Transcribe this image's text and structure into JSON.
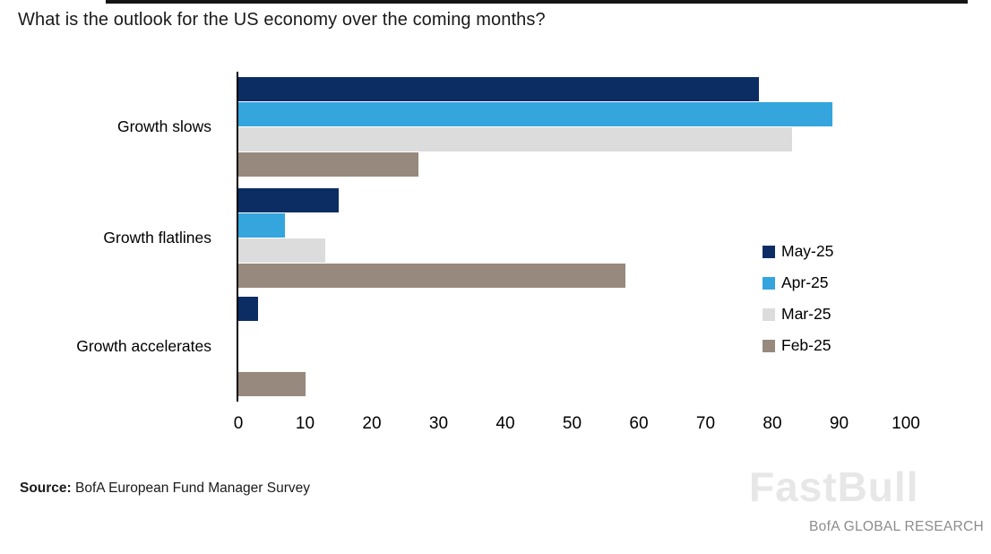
{
  "header": {
    "question": "What is the outlook for the US economy over the coming months?"
  },
  "footer": {
    "source_label": "Source:",
    "source_text": "BofA European Fund Manager Survey",
    "watermark": "FastBull",
    "brand": "BofA GLOBAL RESEARCH"
  },
  "chart_data": {
    "type": "bar",
    "orientation": "horizontal",
    "title": "What is the outlook for the US economy over the coming months?",
    "categories": [
      "Growth slows",
      "Growth flatlines",
      "Growth accelerates"
    ],
    "series": [
      {
        "name": "May-25",
        "color": "#0c2d64",
        "values": [
          78,
          15,
          3
        ]
      },
      {
        "name": "Apr-25",
        "color": "#34a5dd",
        "values": [
          89,
          7,
          0
        ]
      },
      {
        "name": "Mar-25",
        "color": "#dcdcdc",
        "values": [
          83,
          13,
          0
        ]
      },
      {
        "name": "Feb-25",
        "color": "#97897e",
        "values": [
          27,
          58,
          10
        ]
      }
    ],
    "xlim": [
      0,
      100
    ],
    "xticks": [
      0,
      10,
      20,
      30,
      40,
      50,
      60,
      70,
      80,
      90,
      100
    ],
    "xlabel": "",
    "ylabel": "",
    "grid": false,
    "legend_position": "right"
  }
}
